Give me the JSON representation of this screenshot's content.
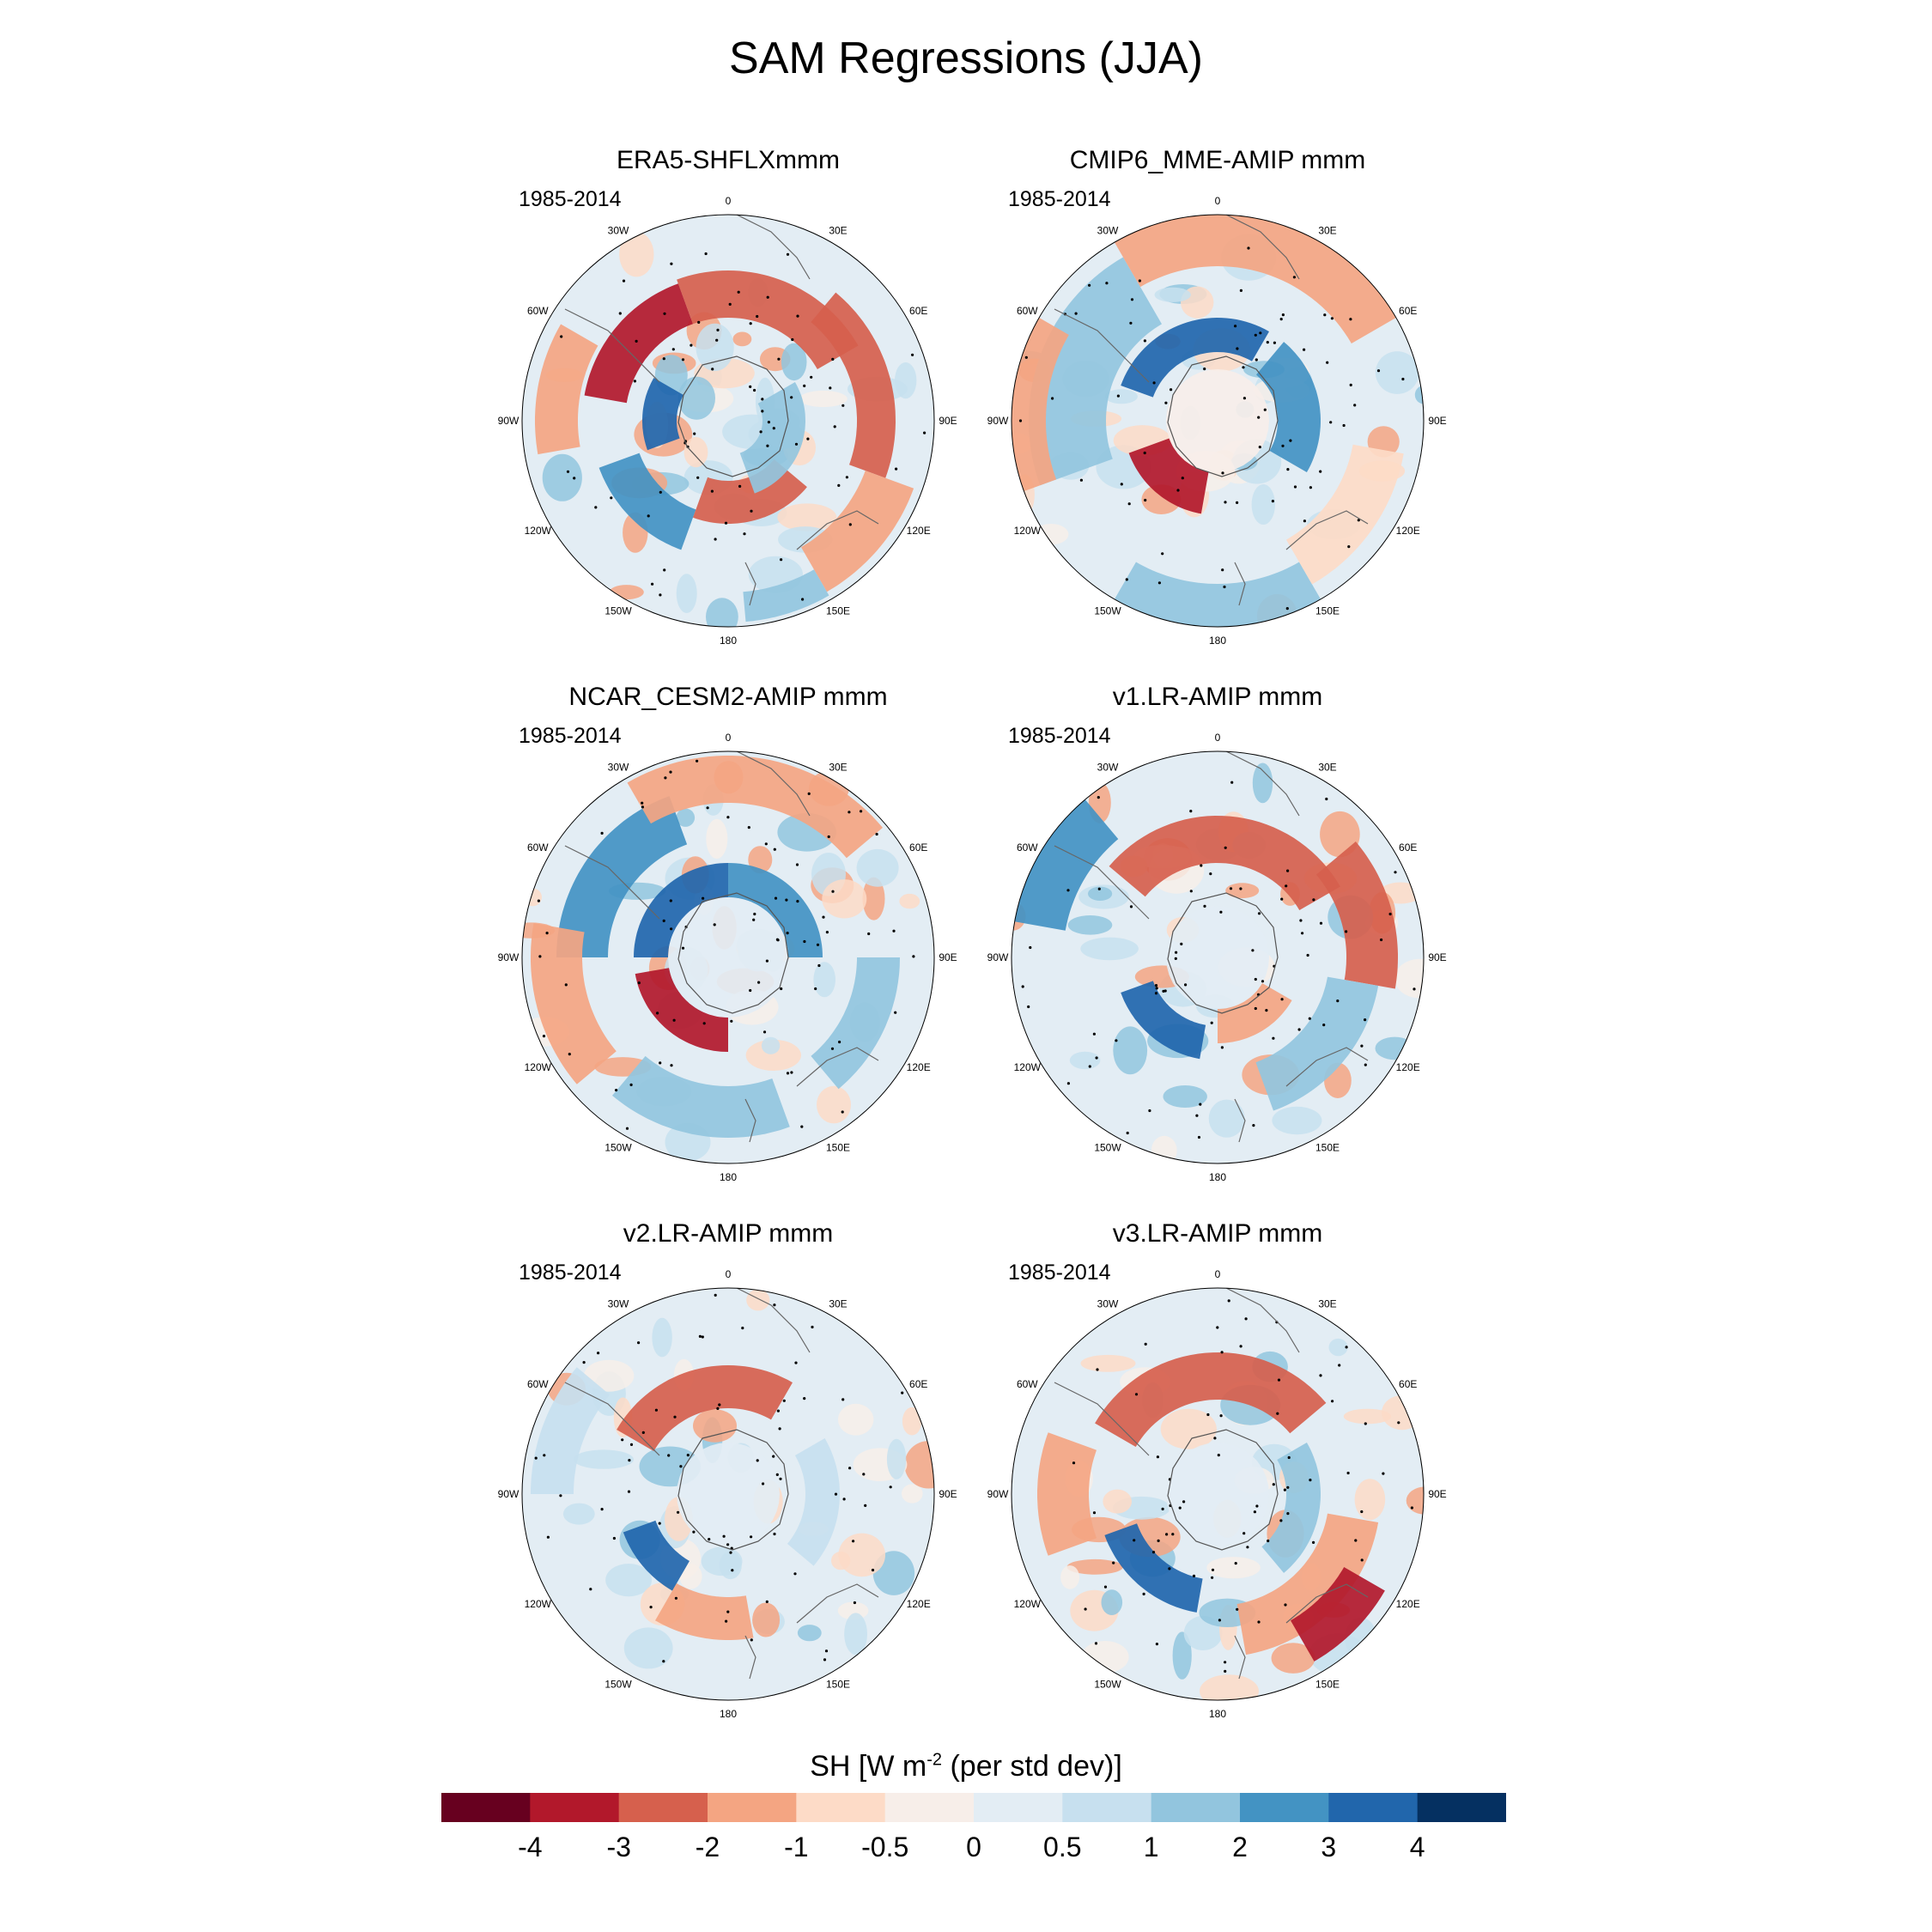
{
  "figure": {
    "title": "SAM Regressions (JJA)",
    "colorbar": {
      "title": "SH [W m",
      "title_sup": "-2",
      "title_suffix": " (per std dev)]",
      "colors": [
        "#67001f",
        "#b2182b",
        "#d6604d",
        "#f4a582",
        "#fddbc7",
        "#f7eee9",
        "#e3edf4",
        "#c7e0ef",
        "#92c5de",
        "#4393c3",
        "#2166ac",
        "#053061"
      ],
      "labels": [
        "-4",
        "-3",
        "-2",
        "-1",
        "-0.5",
        "0",
        "0.5",
        "1",
        "2",
        "3",
        "4"
      ]
    },
    "longitude_labels": [
      "0",
      "30E",
      "60E",
      "90E",
      "120E",
      "150E",
      "180",
      "150W",
      "120W",
      "90W",
      "60W",
      "30W"
    ],
    "panels": [
      {
        "title": "ERA5-SHFLXmmm",
        "period": "1985-2014"
      },
      {
        "title": "CMIP6_MME-AMIP  mmm",
        "period": "1985-2014"
      },
      {
        "title": "NCAR_CESM2-AMIP  mmm",
        "period": "1985-2014"
      },
      {
        "title": "v1.LR-AMIP  mmm",
        "period": "1985-2014"
      },
      {
        "title": "v2.LR-AMIP  mmm",
        "period": "1985-2014"
      },
      {
        "title": "v3.LR-AMIP  mmm",
        "period": "1985-2014"
      }
    ]
  }
}
